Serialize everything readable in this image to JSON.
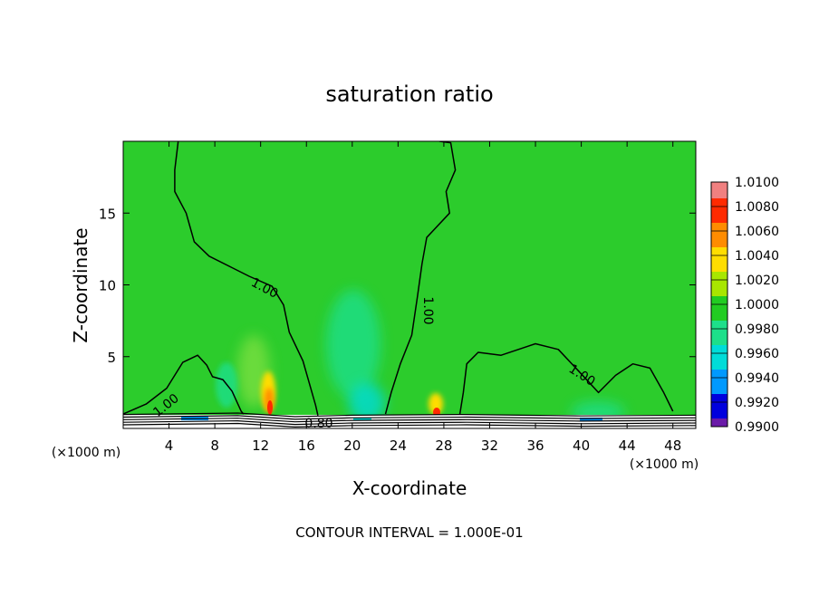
{
  "chart_data": {
    "type": "contour",
    "title": "saturation ratio",
    "xlabel": "X-coordinate",
    "ylabel": "Z-coordinate",
    "x_unit_left": "(×1000 m)",
    "x_unit_right": "(×1000 m)",
    "footer": "CONTOUR INTERVAL = 1.000E-01",
    "xlim": [
      0,
      50
    ],
    "ylim": [
      0,
      20
    ],
    "x_ticks": [
      4,
      8,
      12,
      16,
      20,
      24,
      28,
      32,
      36,
      40,
      44,
      48
    ],
    "y_ticks": [
      5,
      10,
      15
    ],
    "colorbar": {
      "labels": [
        "1.0100",
        "1.0080",
        "1.0060",
        "1.0040",
        "1.0020",
        "1.0000",
        "0.9980",
        "0.9960",
        "0.9940",
        "0.9920",
        "0.9900"
      ],
      "colors": [
        "#f08080",
        "#ff2a00",
        "#ff8c00",
        "#ffdd00",
        "#a8e600",
        "#22cc22",
        "#1ddf8a",
        "#00dcd8",
        "#0099ff",
        "#0000dd",
        "#6a1aa8"
      ]
    },
    "background_color": "#2ccc2c",
    "contour_lines": [
      {
        "level": 1.0,
        "label": "1.00",
        "points": [
          [
            4.8,
            20
          ],
          [
            4.5,
            18
          ],
          [
            4.5,
            16.5
          ],
          [
            5.5,
            15
          ],
          [
            6.2,
            13
          ],
          [
            7.5,
            12
          ],
          [
            9.5,
            11.2
          ],
          [
            11,
            10.6
          ],
          [
            13,
            9.9
          ],
          [
            14,
            8.6
          ],
          [
            14.5,
            6.7
          ],
          [
            15.7,
            4.7
          ],
          [
            16.8,
            1.6
          ],
          [
            17,
            0.9
          ]
        ]
      },
      {
        "level": 1.0,
        "label": "1.00",
        "points": [
          [
            27.6,
            20
          ],
          [
            28.6,
            19.9
          ],
          [
            29,
            18
          ],
          [
            28.2,
            16.5
          ],
          [
            28.5,
            15
          ],
          [
            26.5,
            13.3
          ],
          [
            26.1,
            11.5
          ],
          [
            25.7,
            9.2
          ],
          [
            25.2,
            6.5
          ],
          [
            24.2,
            4.5
          ],
          [
            23.4,
            2.5
          ],
          [
            22.9,
            1.0
          ]
        ]
      },
      {
        "level": 1.0,
        "label": "1.00",
        "points": [
          [
            29.4,
            1.0
          ],
          [
            29.7,
            2.5
          ],
          [
            30,
            4.5
          ],
          [
            31,
            5.3
          ],
          [
            33,
            5.1
          ],
          [
            36,
            5.9
          ],
          [
            38,
            5.5
          ],
          [
            40,
            3.8
          ],
          [
            41.5,
            2.5
          ],
          [
            43,
            3.7
          ],
          [
            44.5,
            4.5
          ],
          [
            46,
            4.2
          ],
          [
            47.2,
            2.5
          ],
          [
            48,
            1.2
          ]
        ]
      },
      {
        "level": 1.0,
        "label": "1.00",
        "points": [
          [
            0,
            1.0
          ],
          [
            2,
            1.7
          ],
          [
            3.8,
            2.8
          ],
          [
            5.2,
            4.6
          ],
          [
            6.5,
            5.1
          ],
          [
            7.3,
            4.4
          ],
          [
            7.8,
            3.6
          ],
          [
            8.7,
            3.4
          ],
          [
            9.5,
            2.6
          ],
          [
            10.3,
            1.2
          ],
          [
            10.5,
            1.0
          ]
        ]
      },
      {
        "level": 0.8,
        "label": "0.80",
        "points": [
          [
            0,
            0.6
          ],
          [
            10,
            0.7
          ],
          [
            15,
            0.45
          ],
          [
            20,
            0.55
          ],
          [
            30,
            0.6
          ],
          [
            40,
            0.5
          ],
          [
            50,
            0.55
          ]
        ]
      }
    ],
    "color_anomalies": [
      {
        "x": 12.8,
        "z": 2.0,
        "value": 1.008
      },
      {
        "x": 12.3,
        "z": 3.2,
        "value": 1.004
      },
      {
        "x": 26.8,
        "z": 1.2,
        "value": 1.006
      },
      {
        "x": 19.5,
        "z": 4.5,
        "value": 0.998
      },
      {
        "x": 21.5,
        "z": 1.5,
        "value": 0.996
      }
    ]
  }
}
